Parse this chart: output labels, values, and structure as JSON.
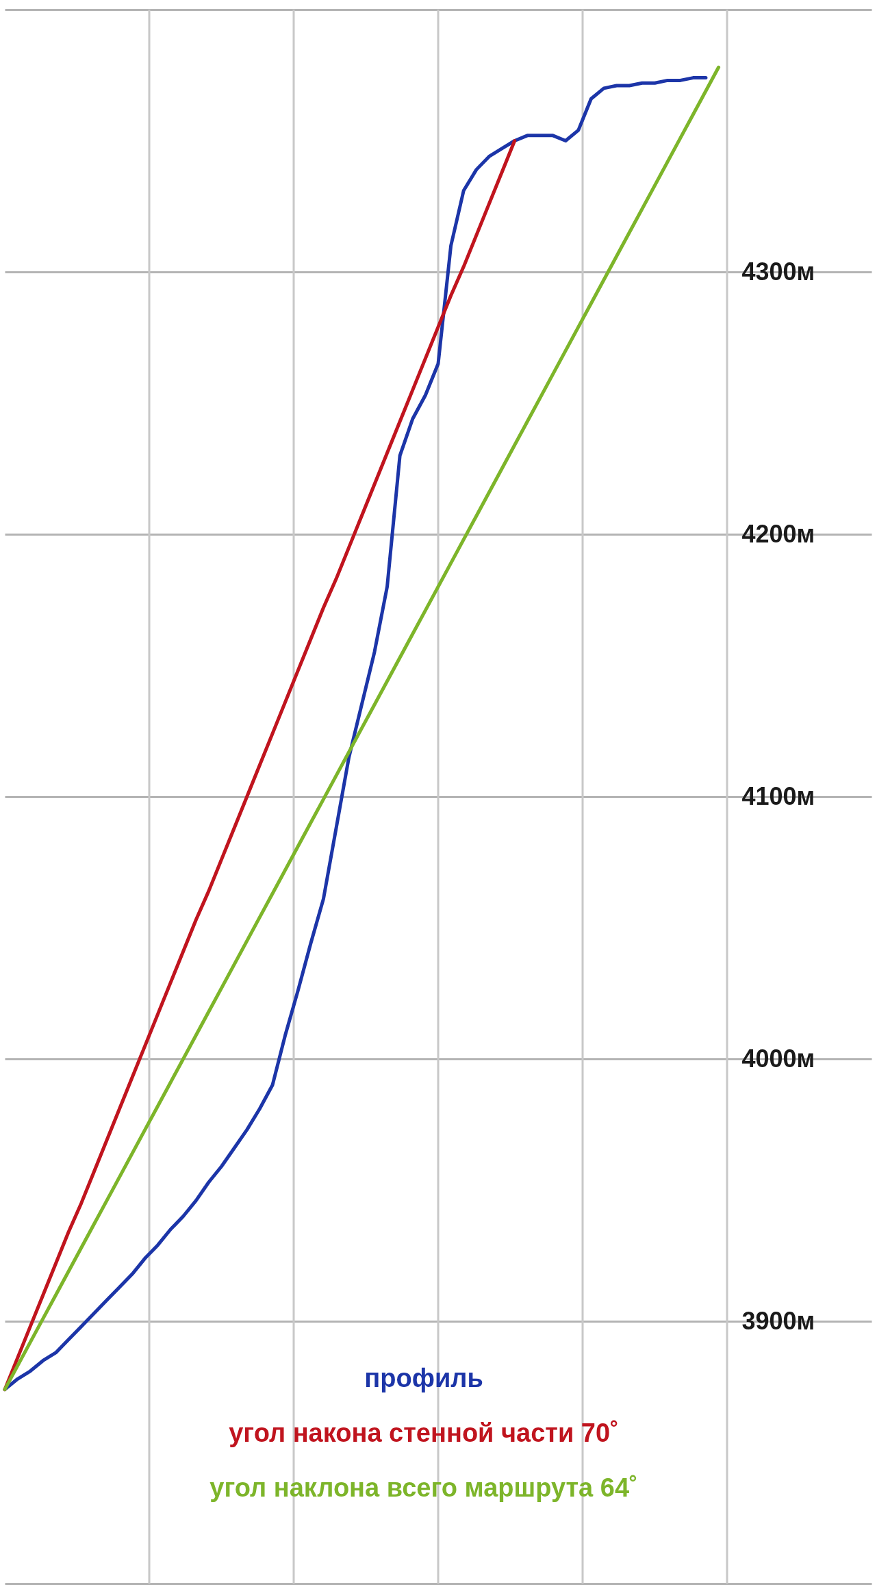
{
  "chart_data": {
    "type": "line",
    "categories": [
      null,
      null,
      null,
      null,
      null,
      null,
      null,
      null,
      null,
      null,
      null,
      null,
      null,
      null,
      null,
      null,
      null,
      null,
      null,
      null,
      null,
      null,
      null,
      null,
      null,
      null,
      null,
      null,
      null,
      null,
      null,
      null,
      null,
      null,
      null,
      null,
      null,
      null,
      null,
      null,
      null,
      null,
      null,
      null,
      null,
      null,
      null,
      null,
      null,
      null,
      null,
      null,
      null,
      null,
      null,
      null,
      null,
      null,
      null,
      null,
      null,
      null,
      null,
      null,
      null,
      null,
      null,
      null,
      null
    ],
    "ylim": [
      3800,
      4400
    ],
    "yticks": [
      {
        "value": 3800,
        "label": null
      },
      {
        "value": 3900,
        "label": "3900м"
      },
      {
        "value": 4000,
        "label": "4000м"
      },
      {
        "value": 4100,
        "label": "4100м"
      },
      {
        "value": 4200,
        "label": "4200м"
      },
      {
        "value": 4300,
        "label": "4300м"
      },
      {
        "value": 4400,
        "label": null
      }
    ],
    "grid": true,
    "tick_labels": "y",
    "series": [
      {
        "name": "профиль",
        "color": "#1c35a8",
        "values": [
          3874,
          3878,
          3881,
          3885,
          3888,
          3893,
          3898,
          3903,
          3908,
          3913,
          3918,
          3924,
          3929,
          3935,
          3940,
          3946,
          3953,
          3959,
          3966,
          3973,
          3981,
          3990,
          4009,
          4026,
          4044,
          4061,
          4088,
          4115,
          4135,
          4155,
          4180,
          4230,
          4244,
          4253,
          4265,
          4310,
          4331,
          4339,
          4344,
          4347,
          4350,
          4352,
          4352,
          4352,
          4350,
          4354,
          4366,
          4370,
          4371,
          4371,
          4372,
          4372,
          4373,
          4373,
          4374,
          4374,
          null,
          null,
          null,
          null,
          null,
          null,
          null,
          null,
          null,
          null,
          null,
          null,
          null
        ]
      },
      {
        "name": "угол накона стенной части 70˚",
        "color": "#c0141e",
        "values": [
          3874,
          3886,
          3898,
          3910,
          3922,
          3934,
          3945,
          3957,
          3969,
          3981,
          3993,
          4005,
          4017,
          4029,
          4041,
          4053,
          4064,
          4076,
          4088,
          4100,
          4112,
          4124,
          4136,
          4148,
          4160,
          4172,
          4183,
          4195,
          4207,
          4219,
          4231,
          4243,
          4255,
          4267,
          4279,
          4291,
          4302,
          4314,
          4326,
          4338,
          4350,
          null,
          null,
          null,
          null,
          null,
          null,
          null,
          null,
          null,
          null,
          null,
          null,
          null,
          null,
          null,
          null,
          null,
          null,
          null,
          null,
          null,
          null,
          null,
          null,
          null,
          null,
          null,
          null
        ]
      },
      {
        "name": "угол наклона всего маршрута 64˚",
        "color": "#7db52a",
        "values": [
          3874,
          3883,
          3892,
          3901,
          3910,
          3919,
          3928,
          3937,
          3946,
          3955,
          3964,
          3973,
          3982,
          3991,
          4000,
          4009,
          4018,
          4027,
          4036,
          4045,
          4054,
          4063,
          4072,
          4081,
          4090,
          4099,
          4108,
          4117,
          4126,
          4135,
          4144,
          4153,
          4162,
          4171,
          4180,
          4189,
          4198,
          4207,
          4216,
          4225,
          4234,
          4243,
          4252,
          4261,
          4270,
          4279,
          4288,
          4297,
          4306,
          4315,
          4324,
          4333,
          4342,
          4351,
          4360,
          4369,
          4378,
          null,
          null,
          null,
          null,
          null,
          null,
          null,
          null,
          null,
          null,
          null,
          null
        ]
      }
    ]
  }
}
